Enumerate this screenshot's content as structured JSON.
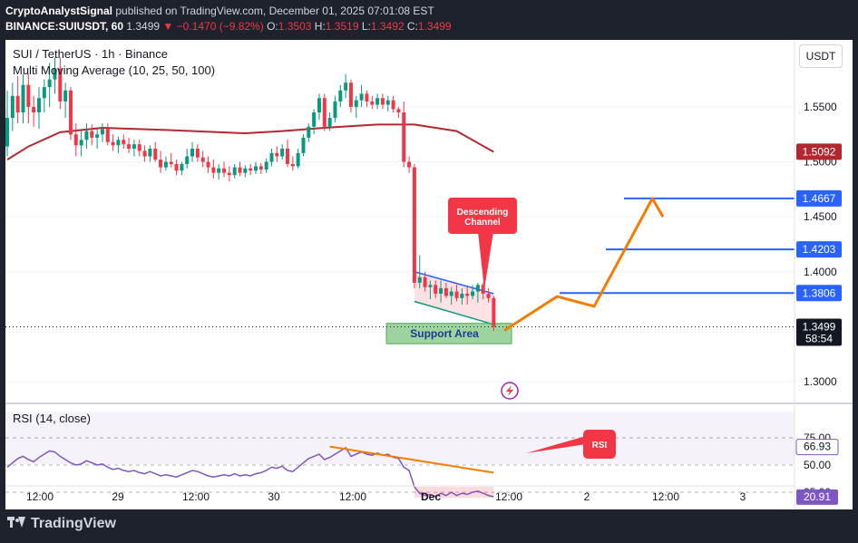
{
  "header": {
    "author": "CryptoAnalystSignal",
    "published": "published on TradingView.com, December 01, 2025 07:01:08 EST",
    "symbol_line_prefix": "BINANCE:SUIUSDT, 60",
    "last": "1.3499",
    "change_arrow": "▼",
    "change": "−0.1470 (−9.82%)",
    "o_label": "O:",
    "o": "1.3503",
    "h_label": "H:",
    "h": "1.3519",
    "l_label": "L:",
    "l": "1.3492",
    "c_label": "C:",
    "c": "1.3499"
  },
  "legend": {
    "title": "SUI / TetherUS · 1h · Binance",
    "indicator": "Multi Moving Average (10, 25, 50, 100)",
    "rsi": "RSI (14, close)"
  },
  "currency_button": "USDT",
  "annotations": {
    "channel": [
      "Descending",
      "Channel"
    ],
    "support": "Support Area",
    "rsi_tag": "RSI"
  },
  "footer": {
    "brand": "TradingView"
  },
  "colors": {
    "up": "#089981",
    "down": "#f23645",
    "ma": "#b2282e",
    "target": "#2962ff",
    "path": "#f57c00",
    "support": "#4caf50"
  },
  "chart_data": {
    "type": "candlestick",
    "title": "SUI / TetherUS · 1h · Binance",
    "price_axis": {
      "range": [
        1.281,
        1.611
      ],
      "ticks": [
        "1.5500",
        "1.5000",
        "1.4500",
        "1.4000",
        "1.3000"
      ],
      "tick_values": [
        1.55,
        1.5,
        1.45,
        1.4,
        1.3
      ]
    },
    "price_badges": [
      {
        "label": "1.5092",
        "value": 1.5092,
        "color": "#b2282e"
      },
      {
        "label": "1.4667",
        "value": 1.4667,
        "color": "#2962ff"
      },
      {
        "label": "1.4203",
        "value": 1.4203,
        "color": "#2962ff"
      },
      {
        "label": "1.3806",
        "value": 1.3806,
        "color": "#2962ff"
      },
      {
        "label": "1.3499",
        "value": 1.3499,
        "color": "#131722",
        "sub": "58:54"
      }
    ],
    "targets": [
      1.4667,
      1.4203,
      1.3806
    ],
    "time_axis": [
      "12:00",
      "29",
      "12:00",
      "30",
      "12:00",
      "Dec",
      "12:00",
      "2",
      "12:00",
      "3"
    ],
    "candles": [
      [
        1.514,
        1.565,
        1.505,
        1.54
      ],
      [
        1.54,
        1.572,
        1.528,
        1.56
      ],
      [
        1.56,
        1.578,
        1.535,
        1.545
      ],
      [
        1.545,
        1.58,
        1.535,
        1.57
      ],
      [
        1.57,
        1.58,
        1.535,
        1.55
      ],
      [
        1.55,
        1.56,
        1.532,
        1.545
      ],
      [
        1.545,
        1.568,
        1.53,
        1.558
      ],
      [
        1.558,
        1.575,
        1.545,
        1.568
      ],
      [
        1.568,
        1.59,
        1.55,
        1.575
      ],
      [
        1.575,
        1.595,
        1.562,
        1.585
      ],
      [
        1.585,
        1.595,
        1.548,
        1.555
      ],
      [
        1.555,
        1.572,
        1.54,
        1.565
      ],
      [
        1.565,
        1.568,
        1.52,
        1.525
      ],
      [
        1.525,
        1.535,
        1.505,
        1.515
      ],
      [
        1.515,
        1.528,
        1.505,
        1.52
      ],
      [
        1.52,
        1.535,
        1.512,
        1.528
      ],
      [
        1.528,
        1.534,
        1.515,
        1.522
      ],
      [
        1.522,
        1.53,
        1.512,
        1.525
      ],
      [
        1.525,
        1.535,
        1.518,
        1.53
      ],
      [
        1.53,
        1.535,
        1.515,
        1.518
      ],
      [
        1.518,
        1.525,
        1.51,
        1.515
      ],
      [
        1.515,
        1.523,
        1.508,
        1.52
      ],
      [
        1.52,
        1.525,
        1.512,
        1.516
      ],
      [
        1.516,
        1.522,
        1.508,
        1.512
      ],
      [
        1.512,
        1.52,
        1.505,
        1.516
      ],
      [
        1.516,
        1.52,
        1.505,
        1.51
      ],
      [
        1.51,
        1.515,
        1.5,
        1.505
      ],
      [
        1.505,
        1.515,
        1.5,
        1.512
      ],
      [
        1.512,
        1.518,
        1.5,
        1.502
      ],
      [
        1.502,
        1.51,
        1.49,
        1.495
      ],
      [
        1.495,
        1.505,
        1.492,
        1.5
      ],
      [
        1.5,
        1.508,
        1.495,
        1.498
      ],
      [
        1.498,
        1.502,
        1.488,
        1.492
      ],
      [
        1.492,
        1.5,
        1.488,
        1.498
      ],
      [
        1.498,
        1.512,
        1.494,
        1.505
      ],
      [
        1.505,
        1.518,
        1.5,
        1.512
      ],
      [
        1.512,
        1.516,
        1.5,
        1.504
      ],
      [
        1.504,
        1.51,
        1.495,
        1.5
      ],
      [
        1.5,
        1.505,
        1.49,
        1.495
      ],
      [
        1.495,
        1.502,
        1.485,
        1.49
      ],
      [
        1.49,
        1.498,
        1.484,
        1.494
      ],
      [
        1.494,
        1.5,
        1.486,
        1.49
      ],
      [
        1.49,
        1.496,
        1.482,
        1.488
      ],
      [
        1.488,
        1.498,
        1.485,
        1.495
      ],
      [
        1.495,
        1.5,
        1.487,
        1.49
      ],
      [
        1.49,
        1.497,
        1.486,
        1.494
      ],
      [
        1.494,
        1.498,
        1.488,
        1.492
      ],
      [
        1.492,
        1.5,
        1.489,
        1.496
      ],
      [
        1.496,
        1.499,
        1.489,
        1.493
      ],
      [
        1.493,
        1.503,
        1.49,
        1.5
      ],
      [
        1.5,
        1.512,
        1.496,
        1.508
      ],
      [
        1.508,
        1.514,
        1.5,
        1.505
      ],
      [
        1.505,
        1.516,
        1.502,
        1.512
      ],
      [
        1.512,
        1.52,
        1.495,
        1.498
      ],
      [
        1.498,
        1.505,
        1.492,
        1.496
      ],
      [
        1.496,
        1.512,
        1.494,
        1.508
      ],
      [
        1.508,
        1.525,
        1.505,
        1.522
      ],
      [
        1.522,
        1.535,
        1.518,
        1.532
      ],
      [
        1.532,
        1.548,
        1.525,
        1.545
      ],
      [
        1.545,
        1.562,
        1.538,
        1.558
      ],
      [
        1.558,
        1.562,
        1.528,
        1.532
      ],
      [
        1.532,
        1.545,
        1.528,
        1.54
      ],
      [
        1.54,
        1.56,
        1.536,
        1.555
      ],
      [
        1.555,
        1.57,
        1.55,
        1.565
      ],
      [
        1.565,
        1.58,
        1.558,
        1.572
      ],
      [
        1.572,
        1.575,
        1.545,
        1.55
      ],
      [
        1.55,
        1.56,
        1.54,
        1.556
      ],
      [
        1.556,
        1.57,
        1.55,
        1.562
      ],
      [
        1.562,
        1.565,
        1.55,
        1.555
      ],
      [
        1.555,
        1.56,
        1.548,
        1.552
      ],
      [
        1.552,
        1.562,
        1.548,
        1.558
      ],
      [
        1.558,
        1.562,
        1.548,
        1.552
      ],
      [
        1.552,
        1.56,
        1.546,
        1.556
      ],
      [
        1.556,
        1.56,
        1.545,
        1.548
      ],
      [
        1.548,
        1.55,
        1.54,
        1.545
      ],
      [
        1.545,
        1.555,
        1.495,
        1.5
      ],
      [
        1.5,
        1.505,
        1.49,
        1.495
      ],
      [
        1.495,
        1.498,
        1.385,
        1.39
      ],
      [
        1.39,
        1.415,
        1.385,
        1.395
      ],
      [
        1.395,
        1.4,
        1.382,
        1.386
      ],
      [
        1.386,
        1.392,
        1.375,
        1.388
      ],
      [
        1.388,
        1.392,
        1.376,
        1.38
      ],
      [
        1.38,
        1.392,
        1.372,
        1.385
      ],
      [
        1.385,
        1.39,
        1.376,
        1.378
      ],
      [
        1.378,
        1.386,
        1.37,
        1.382
      ],
      [
        1.382,
        1.388,
        1.373,
        1.376
      ],
      [
        1.376,
        1.385,
        1.37,
        1.38
      ],
      [
        1.38,
        1.386,
        1.37,
        1.378
      ],
      [
        1.378,
        1.388,
        1.375,
        1.382
      ],
      [
        1.382,
        1.39,
        1.372,
        1.388
      ],
      [
        1.388,
        1.39,
        1.375,
        1.38
      ],
      [
        1.38,
        1.385,
        1.372,
        1.376
      ],
      [
        1.376,
        1.378,
        1.346,
        1.35
      ]
    ],
    "moving_average": [
      [
        0,
        1.502
      ],
      [
        4,
        1.514
      ],
      [
        10,
        1.527
      ],
      [
        18,
        1.531
      ],
      [
        30,
        1.529
      ],
      [
        45,
        1.526
      ],
      [
        52,
        1.528
      ],
      [
        60,
        1.531
      ],
      [
        70,
        1.534
      ],
      [
        77,
        1.534
      ],
      [
        85,
        1.528
      ],
      [
        92,
        1.509
      ]
    ],
    "descending_channel": {
      "upper": [
        [
          77,
          1.4
        ],
        [
          92,
          1.38
        ]
      ],
      "lower": [
        [
          77,
          1.373
        ],
        [
          92,
          1.352
        ]
      ]
    },
    "support_area": {
      "x": [
        76,
        94
      ],
      "y": [
        1.3345,
        1.353
      ]
    },
    "projected_path": [
      [
        94,
        1.3465
      ],
      [
        104,
        1.3775
      ],
      [
        111,
        1.3685
      ],
      [
        122,
        1.4667
      ],
      [
        124,
        1.45
      ]
    ],
    "rsi": {
      "range": [
        0,
        100
      ],
      "levels": [
        75,
        50,
        25
      ],
      "axis_labels": [
        "75.00",
        "50.00",
        "25.00"
      ],
      "badges": [
        {
          "label": "66.93",
          "value": 66.93
        },
        {
          "label": "20.91",
          "value": 20.91
        }
      ],
      "values": [
        48,
        52,
        56,
        58,
        55,
        53,
        57,
        60,
        63,
        62,
        58,
        55,
        52,
        50,
        51,
        54,
        52,
        50,
        51,
        48,
        46,
        47,
        45,
        44,
        45,
        43,
        42,
        44,
        42,
        40,
        41,
        40,
        39,
        41,
        43,
        45,
        44,
        42,
        40,
        39,
        40,
        41,
        40,
        42,
        40,
        41,
        40,
        42,
        43,
        45,
        48,
        47,
        49,
        45,
        44,
        48,
        52,
        56,
        58,
        60,
        55,
        57,
        60,
        63,
        66,
        58,
        60,
        62,
        60,
        59,
        61,
        59,
        60,
        57,
        56,
        48,
        45,
        30,
        24,
        22,
        23,
        21,
        24,
        22,
        25,
        22,
        24,
        23,
        25,
        26,
        24,
        22,
        20.91
      ],
      "trend_line": [
        [
          61,
          67
        ],
        [
          92,
          43
        ]
      ]
    }
  }
}
